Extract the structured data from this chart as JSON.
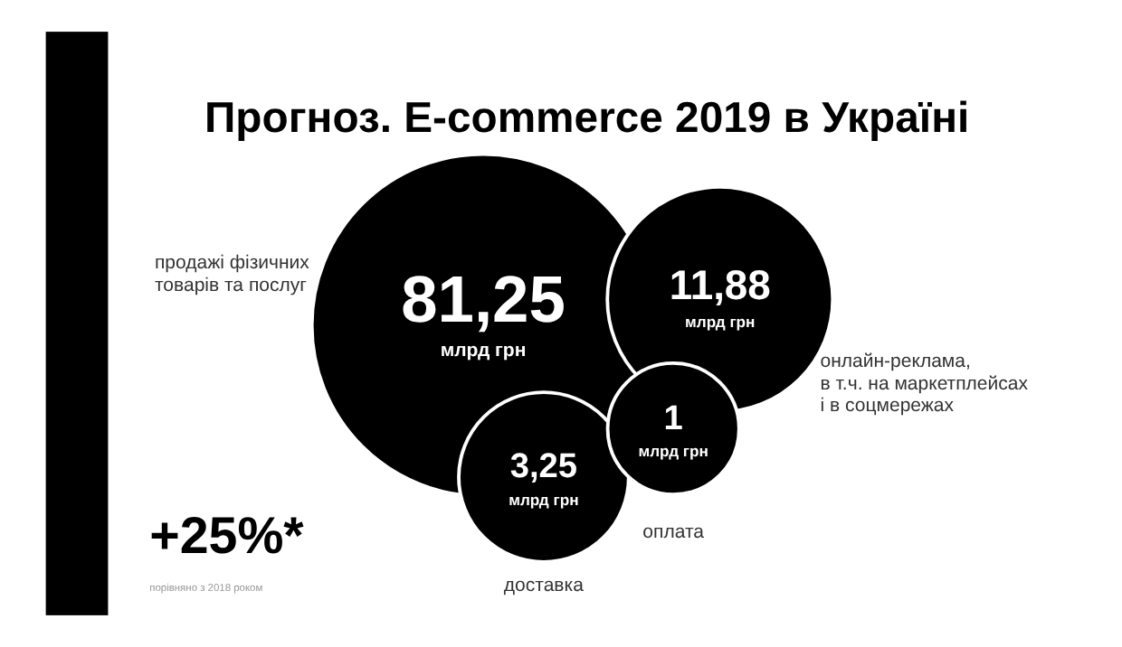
{
  "chart_data": {
    "type": "other",
    "title": "Прогноз.  E-commerce 2019 в Україні",
    "categories": [
      "продажі фізичних\nтоварів та послуг",
      "онлайн-реклама,\nв т.ч. на маркетплейсах\nі в соцмережах",
      "доставка",
      "оплата"
    ],
    "values": [
      81.25,
      11.88,
      3.25,
      1
    ],
    "value_labels": [
      "81,25",
      "11,88",
      "3,25",
      "1"
    ],
    "colors": [
      "#000000",
      "#000000",
      "#000000",
      "#000000"
    ],
    "annotations": [
      "млрд грн",
      "+25%*",
      "порівняно з 2018 роком"
    ]
  }
}
